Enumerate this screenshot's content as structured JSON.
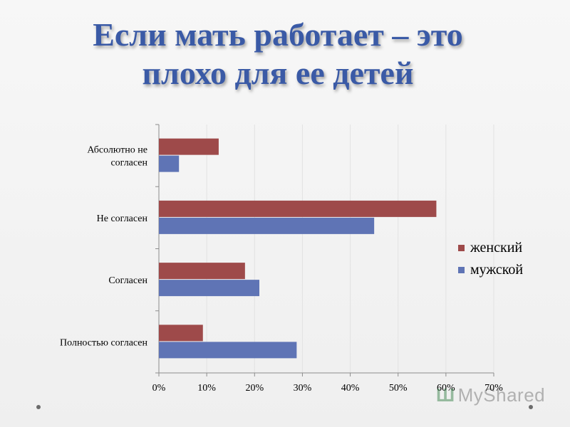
{
  "title": {
    "line1": "Если мать работает – это",
    "line2": "плохо для ее детей"
  },
  "watermark": "MyShared",
  "chart_data": {
    "type": "bar",
    "orientation": "horizontal",
    "title": "",
    "xlabel": "",
    "ylabel": "",
    "categories": [
      "Абсолютно не согласен",
      "Не согласен",
      "Согласен",
      "Полностью согласен"
    ],
    "category_label_lines": [
      [
        "Абсолютно не",
        "согласен"
      ],
      [
        "Не согласен"
      ],
      [
        "Согласен"
      ],
      [
        "Полностью согласен"
      ]
    ],
    "series": [
      {
        "name": "женский",
        "color": "#9e4a4a",
        "values": [
          12.5,
          58,
          18,
          9.2
        ]
      },
      {
        "name": "мужской",
        "color": "#5f74b5",
        "values": [
          4.2,
          45,
          21,
          28.8
        ]
      }
    ],
    "xlim": [
      0,
      70
    ],
    "xticks": [
      "0%",
      "10%",
      "20%",
      "30%",
      "40%",
      "50%",
      "60%",
      "70%"
    ],
    "grid": true,
    "legend_position": "right"
  }
}
